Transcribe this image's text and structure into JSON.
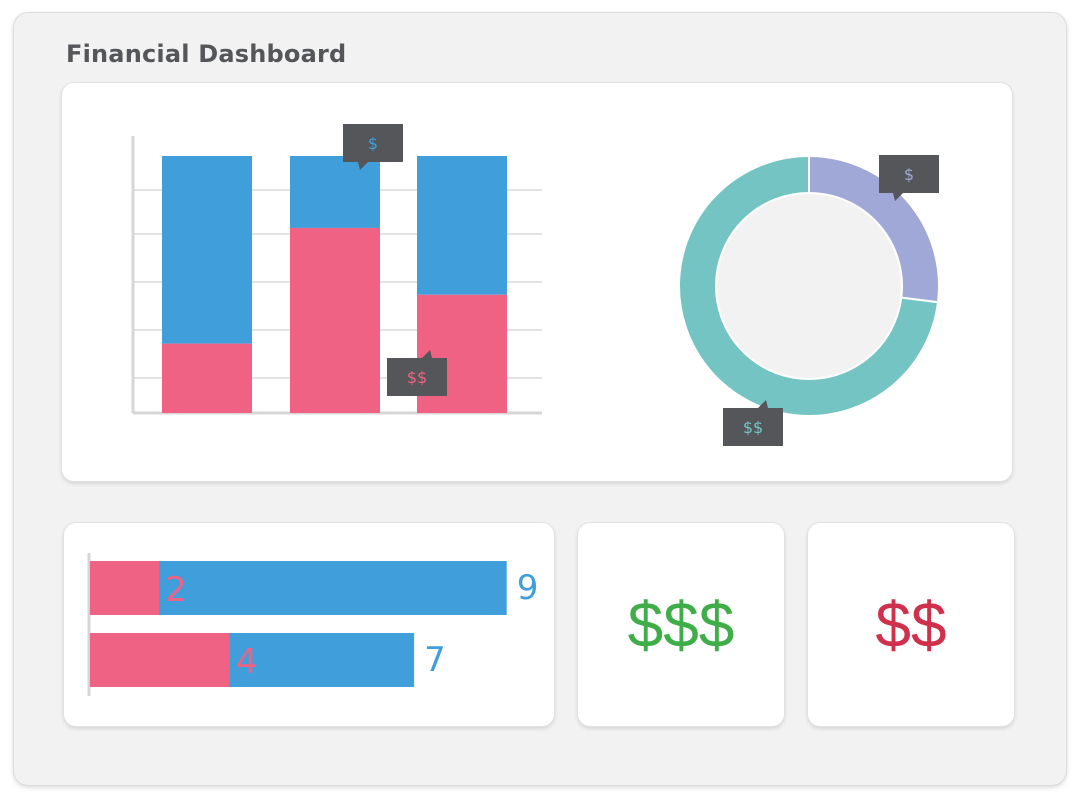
{
  "header": {
    "title": "Financial Dashboard"
  },
  "colors": {
    "blue": "#409fdb",
    "pink": "#f06283",
    "teal": "#74c4c4",
    "lavender": "#9fa8d6",
    "tooltip": "#555659",
    "green": "#3fae49",
    "red": "#d0304b"
  },
  "stacked_bar": {
    "bottom_fraction": [
      0.27,
      0.72,
      0.46
    ],
    "tooltips": [
      {
        "text": "$",
        "bar": 1,
        "at": "top"
      },
      {
        "text": "$$",
        "bar": 2,
        "at": "bottom"
      }
    ]
  },
  "donut": {
    "lavender_fraction": 0.27,
    "tooltips": [
      {
        "text": "$",
        "segment": "lavender"
      },
      {
        "text": "$$",
        "segment": "teal"
      }
    ]
  },
  "horizontal_bars": {
    "rows": [
      {
        "pink_value": "2",
        "total_value": "9",
        "pink": 2,
        "total": 9
      },
      {
        "pink_value": "4",
        "total_value": "7",
        "pink": 4,
        "total": 7
      }
    ]
  },
  "stats": {
    "card1": "$$$",
    "card2": "$$"
  }
}
